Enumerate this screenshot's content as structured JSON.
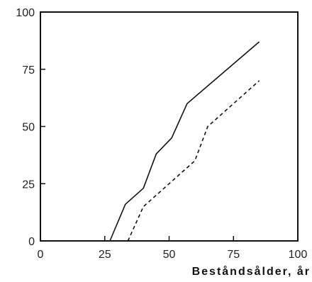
{
  "chart_data": {
    "type": "line",
    "title": "",
    "xlabel": "Beståndsålder, år",
    "ylabel": "",
    "xlim": [
      0,
      100
    ],
    "ylim": [
      0,
      100
    ],
    "xticks": [
      "0",
      "25",
      "50",
      "75",
      "100"
    ],
    "yticks": [
      "0",
      "25",
      "50",
      "75",
      "100"
    ],
    "grid": false,
    "series": [
      {
        "style": "solid",
        "color": "#111111",
        "x": [
          27,
          33,
          40,
          45,
          51,
          57,
          85
        ],
        "y": [
          0,
          16,
          23,
          38,
          45,
          60,
          87
        ]
      },
      {
        "style": "dashed",
        "color": "#111111",
        "x": [
          34,
          40,
          50,
          60,
          65,
          85
        ],
        "y": [
          0,
          15,
          25,
          35,
          50,
          70
        ]
      }
    ]
  }
}
